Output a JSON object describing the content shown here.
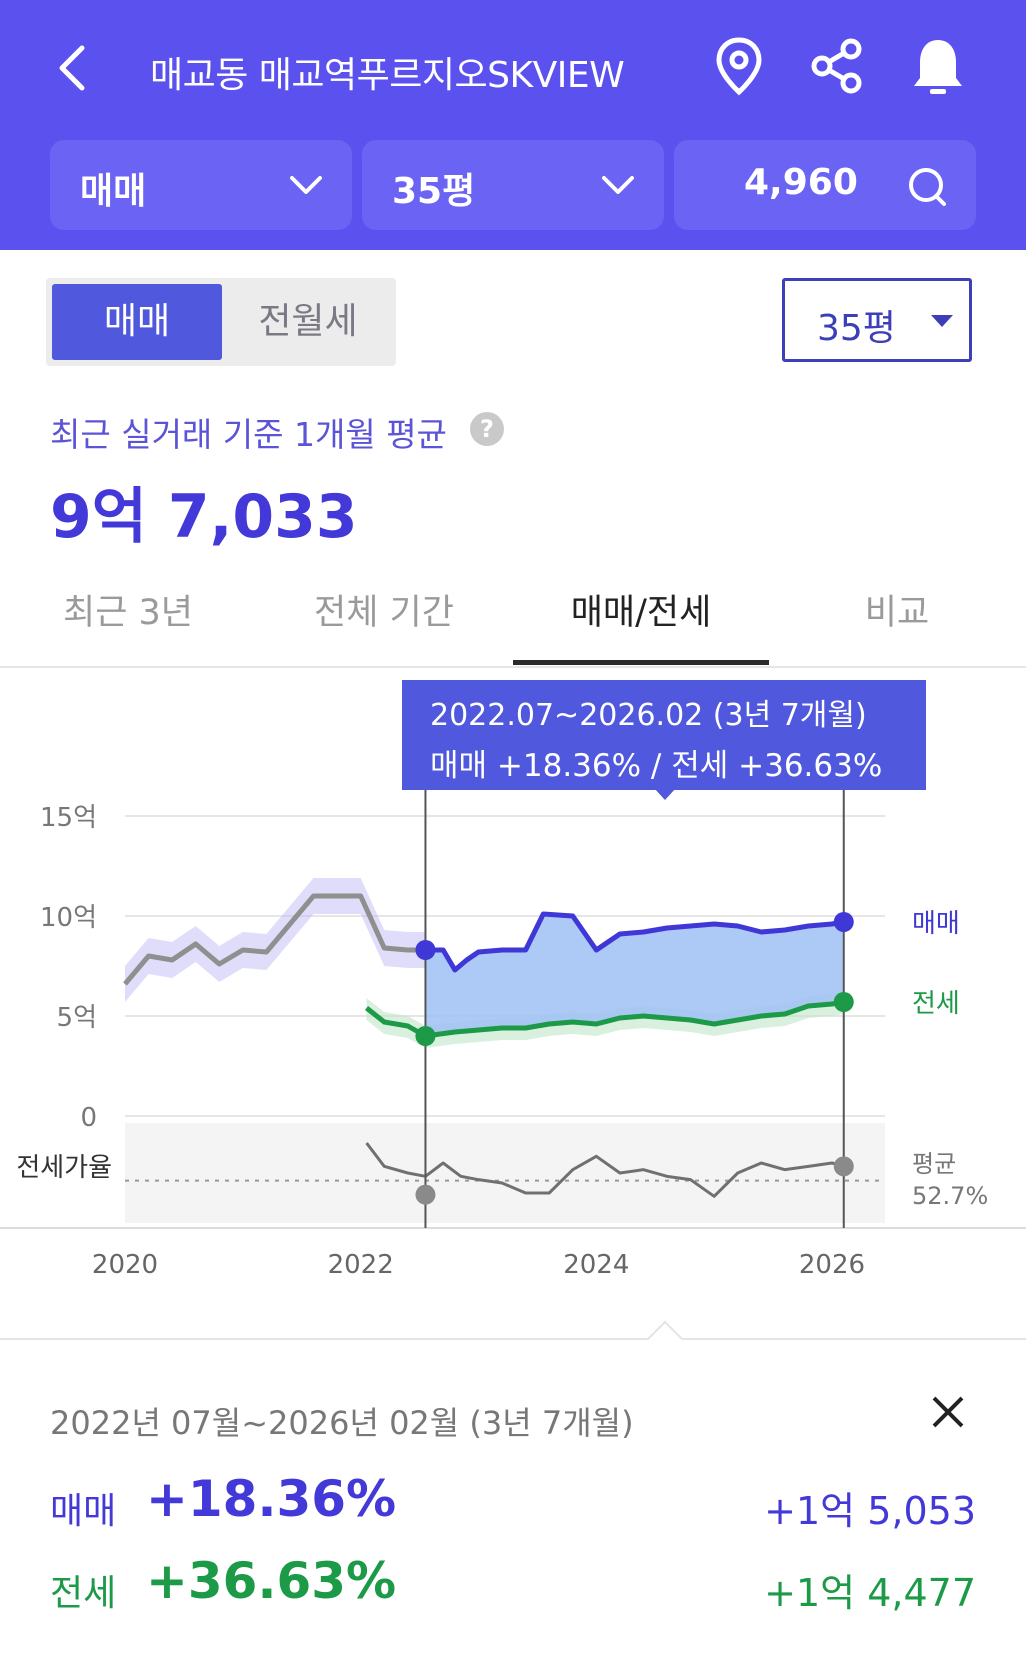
{
  "header": {
    "title": "매교동 매교역푸르지오SKVIEW",
    "filters": [
      {
        "label": "매매"
      },
      {
        "label": "35평"
      },
      {
        "label": "4,960"
      }
    ]
  },
  "segment": {
    "active": "매매",
    "inactive": "전월세"
  },
  "size_dropdown": {
    "value": "35평"
  },
  "average": {
    "label": "최근 실거래 기준 1개월 평균",
    "help": "?",
    "value": "9억 7,033"
  },
  "tabs": [
    {
      "label": "최근 3년"
    },
    {
      "label": "전체 기간"
    },
    {
      "label": "매매/전세",
      "active": true
    },
    {
      "label": "비교"
    }
  ],
  "tooltip": {
    "line1": "2022.07~2026.02 (3년 7개월)",
    "line2": "매매 +18.36%  /  전세 +36.63%"
  },
  "chart_data": {
    "type": "line",
    "y_axis_labels": [
      "15억",
      "10억",
      "5억",
      "0"
    ],
    "ratio_label": "전세가율",
    "x_axis_labels": [
      "2020",
      "2022",
      "2024",
      "2026"
    ],
    "ylim": [
      0,
      15
    ],
    "ylabel_unit": "억",
    "selection": [
      "2022.07",
      "2026.02"
    ],
    "series": [
      {
        "name": "매매",
        "color": "#3f37d6",
        "x": [
          2020.0,
          2020.2,
          2020.4,
          2020.6,
          2020.8,
          2021.0,
          2021.2,
          2021.4,
          2021.6,
          2021.8,
          2022.0,
          2022.2,
          2022.4,
          2022.55,
          2022.7,
          2022.8,
          2022.9,
          2023.0,
          2023.2,
          2023.4,
          2023.55,
          2023.8,
          2024.0,
          2024.2,
          2024.4,
          2024.6,
          2024.8,
          2025.0,
          2025.2,
          2025.4,
          2025.6,
          2025.8,
          2026.0,
          2026.1
        ],
        "values": [
          6.6,
          8.0,
          7.8,
          8.6,
          7.6,
          8.3,
          8.2,
          9.6,
          11.0,
          11.0,
          11.0,
          8.4,
          8.3,
          8.3,
          8.3,
          7.3,
          7.8,
          8.2,
          8.3,
          8.3,
          10.1,
          10.0,
          8.3,
          9.1,
          9.2,
          9.4,
          9.5,
          9.6,
          9.5,
          9.2,
          9.3,
          9.5,
          9.6,
          9.7
        ]
      },
      {
        "name": "전세",
        "color": "#1c9a47",
        "x": [
          2022.05,
          2022.2,
          2022.4,
          2022.55,
          2022.8,
          2023.0,
          2023.2,
          2023.4,
          2023.6,
          2023.8,
          2024.0,
          2024.2,
          2024.4,
          2024.6,
          2024.8,
          2025.0,
          2025.2,
          2025.4,
          2025.6,
          2025.8,
          2026.0,
          2026.1
        ],
        "values": [
          5.4,
          4.7,
          4.5,
          4.0,
          4.2,
          4.3,
          4.4,
          4.4,
          4.6,
          4.7,
          4.6,
          4.9,
          5.0,
          4.9,
          4.8,
          4.6,
          4.8,
          5.0,
          5.1,
          5.5,
          5.6,
          5.7
        ]
      },
      {
        "name": "전세가율",
        "color": "#777777",
        "x": [
          2022.05,
          2022.2,
          2022.4,
          2022.55,
          2022.7,
          2022.85,
          2023.0,
          2023.2,
          2023.4,
          2023.6,
          2023.8,
          2024.0,
          2024.2,
          2024.4,
          2024.6,
          2024.8,
          2025.0,
          2025.2,
          2025.4,
          2025.6,
          2025.8,
          2026.0,
          2026.1
        ],
        "values": [
          64,
          57,
          55,
          54,
          58,
          54,
          53,
          52,
          49,
          49,
          56,
          60,
          55,
          56,
          54,
          53,
          48,
          55,
          58,
          56,
          57,
          58,
          57
        ]
      }
    ],
    "end_labels": {
      "sale": "매매",
      "jeonse": "전세",
      "ratio": "평균",
      "ratio_value": "52.7%"
    }
  },
  "summary": {
    "range": "2022년 07월~2026년 02월 (3년 7개월)",
    "rows": [
      {
        "label": "매매",
        "pct": "+18.36%",
        "amount": "+1억 5,053"
      },
      {
        "label": "전세",
        "pct": "+36.63%",
        "amount": "+1억 4,477"
      }
    ]
  },
  "colors": {
    "brand": "#5a51ee",
    "sale": "#4338d8",
    "jeonse": "#1c9a47"
  },
  "icons": [
    "back-icon",
    "location-pin-icon",
    "share-icon",
    "bell-icon",
    "chevron-down-icon",
    "search-icon",
    "help-icon",
    "close-icon"
  ]
}
